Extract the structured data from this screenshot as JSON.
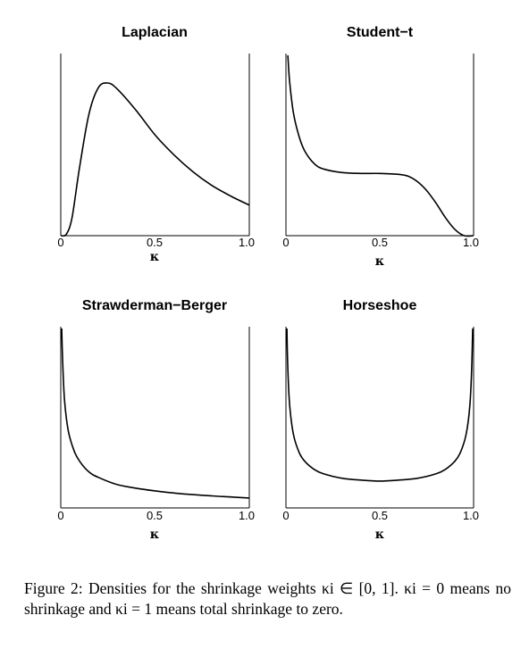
{
  "chart_data": [
    {
      "type": "line",
      "title": "Laplacian",
      "xlabel": "κ",
      "ylabel": "",
      "xlim": [
        0,
        1
      ],
      "x_ticks": [
        "0",
        "0.5",
        "1.0"
      ],
      "series": [
        {
          "x": [
            0,
            0.03,
            0.06,
            0.1,
            0.15,
            0.2,
            0.25,
            0.3,
            0.4,
            0.5,
            0.6,
            0.7,
            0.8,
            0.9,
            1.0
          ],
          "y": [
            0,
            0.01,
            0.12,
            0.45,
            0.8,
            0.97,
            1.0,
            0.96,
            0.82,
            0.66,
            0.53,
            0.42,
            0.33,
            0.26,
            0.2
          ]
        }
      ]
    },
    {
      "type": "line",
      "title": "Student−t",
      "xlabel": "κ",
      "ylabel": "",
      "xlim": [
        0,
        1
      ],
      "x_ticks": [
        "0",
        "0.5",
        "1.0"
      ],
      "series": [
        {
          "x": [
            0.01,
            0.02,
            0.04,
            0.07,
            0.1,
            0.15,
            0.2,
            0.3,
            0.4,
            0.5,
            0.6,
            0.65,
            0.7,
            0.75,
            0.8,
            0.85,
            0.9,
            0.95,
            1.0
          ],
          "y": [
            1.0,
            0.85,
            0.68,
            0.55,
            0.47,
            0.4,
            0.37,
            0.35,
            0.345,
            0.345,
            0.34,
            0.33,
            0.3,
            0.25,
            0.18,
            0.1,
            0.035,
            0.0,
            0.0
          ]
        }
      ]
    },
    {
      "type": "line",
      "title": "Strawderman−Berger",
      "xlabel": "κ",
      "ylabel": "",
      "xlim": [
        0,
        1
      ],
      "x_ticks": [
        "0",
        "0.5",
        "1.0"
      ],
      "series": [
        {
          "x": [
            0.005,
            0.01,
            0.02,
            0.04,
            0.07,
            0.1,
            0.15,
            0.2,
            0.3,
            0.4,
            0.5,
            0.6,
            0.7,
            0.8,
            0.9,
            1.0
          ],
          "y": [
            1.0,
            0.82,
            0.6,
            0.43,
            0.32,
            0.26,
            0.2,
            0.17,
            0.13,
            0.11,
            0.095,
            0.083,
            0.074,
            0.067,
            0.061,
            0.055
          ]
        }
      ]
    },
    {
      "type": "line",
      "title": "Horseshoe",
      "xlabel": "κ",
      "ylabel": "",
      "xlim": [
        0,
        1
      ],
      "x_ticks": [
        "0",
        "0.5",
        "1.0"
      ],
      "series": [
        {
          "x": [
            0.005,
            0.01,
            0.02,
            0.04,
            0.07,
            0.1,
            0.15,
            0.2,
            0.3,
            0.4,
            0.5,
            0.6,
            0.7,
            0.8,
            0.85,
            0.9,
            0.93,
            0.96,
            0.98,
            0.99,
            0.995
          ],
          "y": [
            1.0,
            0.78,
            0.57,
            0.41,
            0.31,
            0.26,
            0.215,
            0.19,
            0.165,
            0.155,
            0.15,
            0.155,
            0.165,
            0.19,
            0.215,
            0.26,
            0.31,
            0.41,
            0.57,
            0.78,
            1.0
          ]
        }
      ]
    }
  ],
  "caption": "Figure 2: Densities for the shrinkage weights κi ∈ [0, 1]. κi = 0 means no shrinkage and κi = 1 means total shrinkage to zero."
}
